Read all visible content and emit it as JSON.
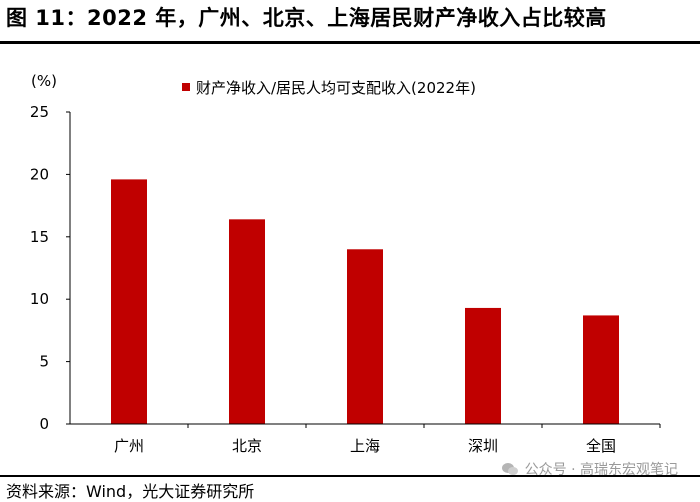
{
  "figure_title": "图 11：2022 年，广州、北京、上海居民财产净收入占比较高",
  "source_note": "资料来源：Wind，光大证券研究所",
  "watermark": "公众号 · 高瑞东宏观笔记",
  "colors": {
    "bar": "#c00000",
    "axis": "#000000",
    "watermark": "#9a9a9a"
  },
  "chart_data": {
    "type": "bar",
    "title": "",
    "unit_label": "(%)",
    "xlabel": "",
    "ylabel": "",
    "categories": [
      "广州",
      "北京",
      "上海",
      "深圳",
      "全国"
    ],
    "series": [
      {
        "name": "财产净收入/居民人均可支配收入(2022年)",
        "values": [
          19.6,
          16.4,
          14.0,
          9.3,
          8.7
        ]
      }
    ],
    "ylim": [
      0,
      25
    ],
    "yticks": [
      0,
      5,
      10,
      15,
      20,
      25
    ],
    "grid": false,
    "legend": "top-center"
  }
}
